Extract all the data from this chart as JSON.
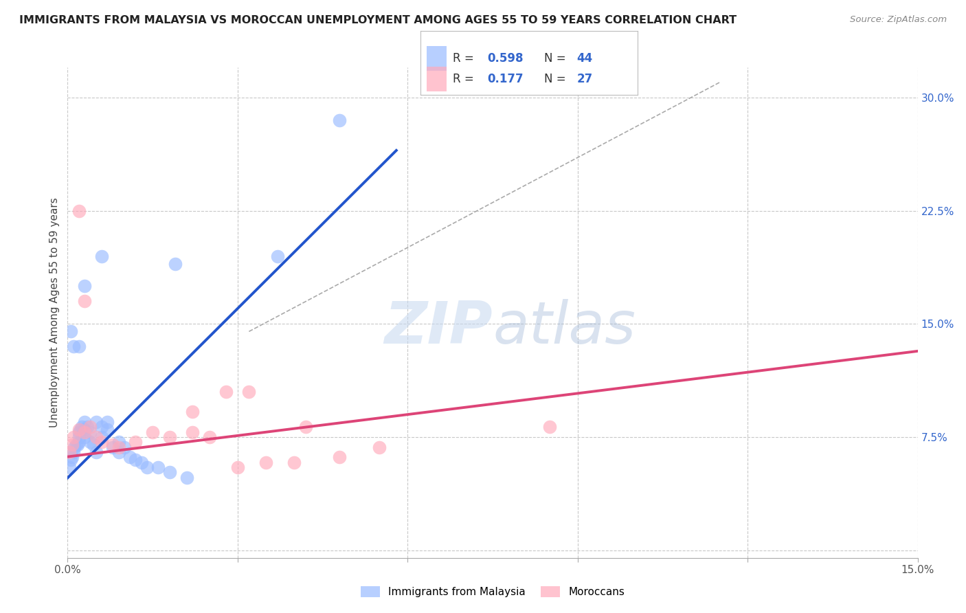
{
  "title": "IMMIGRANTS FROM MALAYSIA VS MOROCCAN UNEMPLOYMENT AMONG AGES 55 TO 59 YEARS CORRELATION CHART",
  "source": "Source: ZipAtlas.com",
  "ylabel": "Unemployment Among Ages 55 to 59 years",
  "xlim": [
    0.0,
    0.15
  ],
  "ylim": [
    -0.005,
    0.32
  ],
  "yticks_right": [
    0.0,
    0.075,
    0.15,
    0.225,
    0.3
  ],
  "yticklabels_right": [
    "",
    "7.5%",
    "15.0%",
    "22.5%",
    "30.0%"
  ],
  "grid_color": "#c8c8c8",
  "blue_color": "#99bbff",
  "pink_color": "#ffaabb",
  "blue_line_color": "#2255cc",
  "pink_line_color": "#dd4477",
  "dashed_line_color": "#aaaaaa",
  "legend_R1": "0.598",
  "legend_N1": "44",
  "legend_R2": "0.177",
  "legend_N2": "27",
  "blue_scatter_x": [
    0.0003,
    0.0005,
    0.0008,
    0.001,
    0.0012,
    0.0015,
    0.0018,
    0.002,
    0.002,
    0.002,
    0.0022,
    0.0025,
    0.003,
    0.003,
    0.003,
    0.0035,
    0.004,
    0.004,
    0.0045,
    0.005,
    0.005,
    0.006,
    0.006,
    0.007,
    0.007,
    0.008,
    0.009,
    0.009,
    0.01,
    0.011,
    0.012,
    0.013,
    0.014,
    0.016,
    0.018,
    0.021,
    0.0005,
    0.001,
    0.002,
    0.003,
    0.006,
    0.019,
    0.037,
    0.048
  ],
  "blue_scatter_y": [
    0.055,
    0.06,
    0.062,
    0.065,
    0.068,
    0.07,
    0.07,
    0.072,
    0.075,
    0.078,
    0.08,
    0.082,
    0.075,
    0.08,
    0.085,
    0.082,
    0.072,
    0.078,
    0.07,
    0.065,
    0.085,
    0.075,
    0.082,
    0.08,
    0.085,
    0.068,
    0.065,
    0.072,
    0.068,
    0.062,
    0.06,
    0.058,
    0.055,
    0.055,
    0.052,
    0.048,
    0.145,
    0.135,
    0.135,
    0.175,
    0.195,
    0.19,
    0.195,
    0.285
  ],
  "pink_scatter_x": [
    0.0003,
    0.0008,
    0.001,
    0.002,
    0.003,
    0.004,
    0.005,
    0.006,
    0.008,
    0.009,
    0.012,
    0.015,
    0.018,
    0.022,
    0.025,
    0.03,
    0.035,
    0.04,
    0.048,
    0.055,
    0.022,
    0.028,
    0.032,
    0.042,
    0.085,
    0.002,
    0.003
  ],
  "pink_scatter_y": [
    0.065,
    0.07,
    0.075,
    0.08,
    0.078,
    0.082,
    0.075,
    0.072,
    0.07,
    0.068,
    0.072,
    0.078,
    0.075,
    0.078,
    0.075,
    0.055,
    0.058,
    0.058,
    0.062,
    0.068,
    0.092,
    0.105,
    0.105,
    0.082,
    0.082,
    0.225,
    0.165
  ],
  "blue_line_x": [
    0.0,
    0.058
  ],
  "blue_line_y": [
    0.048,
    0.265
  ],
  "pink_line_x": [
    0.0,
    0.15
  ],
  "pink_line_y": [
    0.062,
    0.132
  ],
  "dashed_line_x": [
    0.032,
    0.115
  ],
  "dashed_line_y": [
    0.145,
    0.31
  ]
}
